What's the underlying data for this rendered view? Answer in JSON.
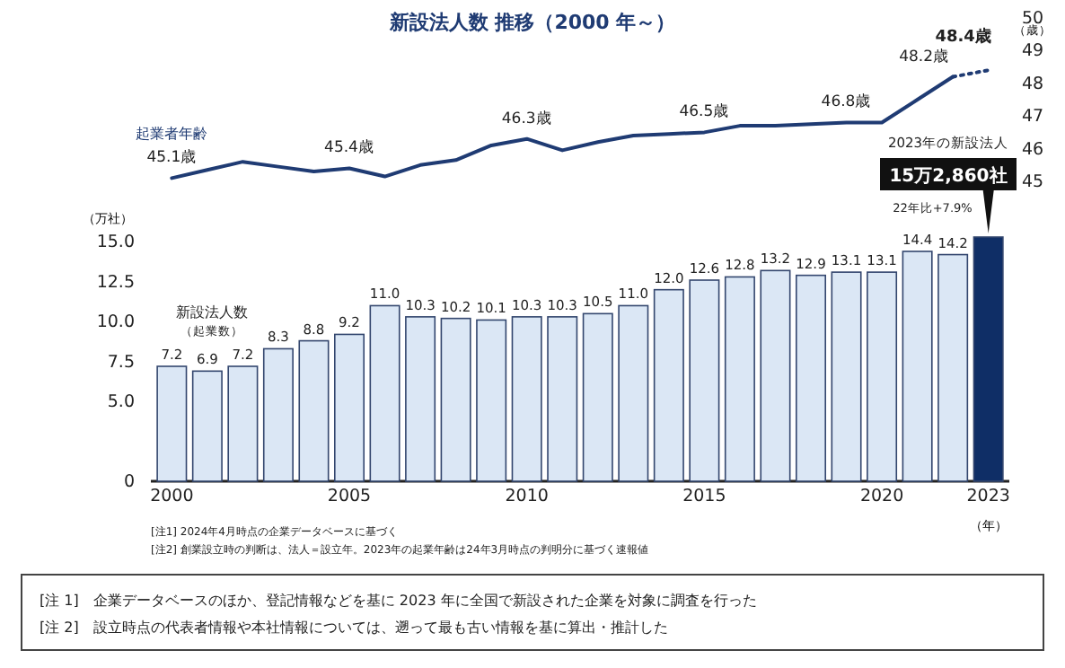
{
  "chart_data": [
    {
      "type": "line",
      "title": "新設法人数 推移（2000 年～）",
      "categories": [
        null,
        null,
        null,
        null,
        null,
        null,
        null,
        null,
        null,
        null,
        null,
        null,
        null,
        null,
        null,
        null,
        null,
        null,
        null,
        null,
        null,
        null,
        null,
        null
      ],
      "ylabel": "（歳）",
      "ylim": [
        45,
        50
      ],
      "yticks": [
        45,
        46,
        47,
        48,
        49,
        50
      ],
      "tick_labels": "y",
      "series": [
        {
          "name": "起業者年齢",
          "type": "line",
          "color": "#1f3b73",
          "line_style": "solid",
          "values": [
            45.1,
            45.35,
            45.6,
            45.45,
            45.3,
            45.4,
            45.15,
            45.5,
            45.65,
            46.1,
            46.3,
            45.95,
            46.2,
            46.4,
            46.45,
            46.5,
            46.7,
            46.7,
            46.75,
            46.8,
            46.8,
            47.5,
            48.2,
            null
          ],
          "value_labels": [
            "45.1歳",
            null,
            null,
            null,
            null,
            "45.4歳",
            null,
            null,
            null,
            null,
            "46.3歳",
            null,
            null,
            null,
            null,
            "46.5歳",
            null,
            null,
            null,
            "46.8歳",
            null,
            null,
            "48.2歳",
            null
          ]
        },
        {
          "type": "line",
          "color": "#1f3b73",
          "line_style": "dotted",
          "values": [
            null,
            null,
            null,
            null,
            null,
            null,
            null,
            null,
            null,
            null,
            null,
            null,
            null,
            null,
            null,
            null,
            null,
            null,
            null,
            null,
            null,
            null,
            48.2,
            48.4
          ],
          "value_labels": [
            null,
            null,
            null,
            null,
            null,
            null,
            null,
            null,
            null,
            null,
            null,
            null,
            null,
            null,
            null,
            null,
            null,
            null,
            null,
            null,
            null,
            null,
            null,
            "48.4歳"
          ]
        }
      ],
      "legend": false,
      "grid": false,
      "marker": "none"
    },
    {
      "type": "bar",
      "categories": [
        "2000",
        null,
        null,
        null,
        null,
        "2005",
        null,
        null,
        null,
        null,
        "2010",
        null,
        null,
        null,
        null,
        "2015",
        null,
        null,
        null,
        null,
        "2020",
        null,
        null,
        "2023"
      ],
      "xlabel": "（年）",
      "ylabel": "（万社）",
      "ylim": [
        0,
        15.3
      ],
      "yticks": [
        0,
        {
          "value": 5,
          "label": "5.0"
        },
        7.5,
        {
          "value": 10,
          "label": "10.0"
        },
        12.5,
        {
          "value": 15,
          "label": "15.0"
        }
      ],
      "series": [
        {
          "name": "新設法人数",
          "type": "bar",
          "colors": [
            "#dbe7f5",
            "#dbe7f5",
            "#dbe7f5",
            "#dbe7f5",
            "#dbe7f5",
            "#dbe7f5",
            "#dbe7f5",
            "#dbe7f5",
            "#dbe7f5",
            "#dbe7f5",
            "#dbe7f5",
            "#dbe7f5",
            "#dbe7f5",
            "#dbe7f5",
            "#dbe7f5",
            "#dbe7f5",
            "#dbe7f5",
            "#dbe7f5",
            "#dbe7f5",
            "#dbe7f5",
            "#dbe7f5",
            "#dbe7f5",
            "#dbe7f5",
            "#0f2e66"
          ],
          "values": [
            7.2,
            6.9,
            7.2,
            8.3,
            8.8,
            9.2,
            11.0,
            10.3,
            10.2,
            10.1,
            10.3,
            10.3,
            10.5,
            11.0,
            12.0,
            12.6,
            12.8,
            13.2,
            12.9,
            13.1,
            13.1,
            14.4,
            14.2,
            15.3
          ],
          "value_labels": [
            "7.2",
            "6.9",
            "7.2",
            "8.3",
            "8.8",
            "9.2",
            "11.0",
            "10.3",
            "10.2",
            "10.1",
            "10.3",
            "10.3",
            "10.5",
            "11.0",
            "12.0",
            "12.6",
            "12.8",
            "13.2",
            "12.9",
            "13.1",
            "13.1",
            "14.4",
            "14.2",
            null
          ]
        }
      ],
      "legend": false,
      "grid": false,
      "annotations": [
        "（起業数）",
        "2023年の新設法人",
        "15万2,860社",
        "22年比+7.9%",
        "[注1] 2024年4月時点の企業データベースに基づく",
        "[注2] 創業設立時の判断は、法人＝設立年。2023年の起業年齢は24年3月時点の判明分に基づく速報値",
        "[注 1]　企業データベースのほか、登記情報などを基に 2023 年に全国で新設された企業を対象に調査を行った",
        "[注 2]　設立時点の代表者情報や本社情報については、遡って最も古い情報を基に算出・推計した"
      ]
    }
  ]
}
